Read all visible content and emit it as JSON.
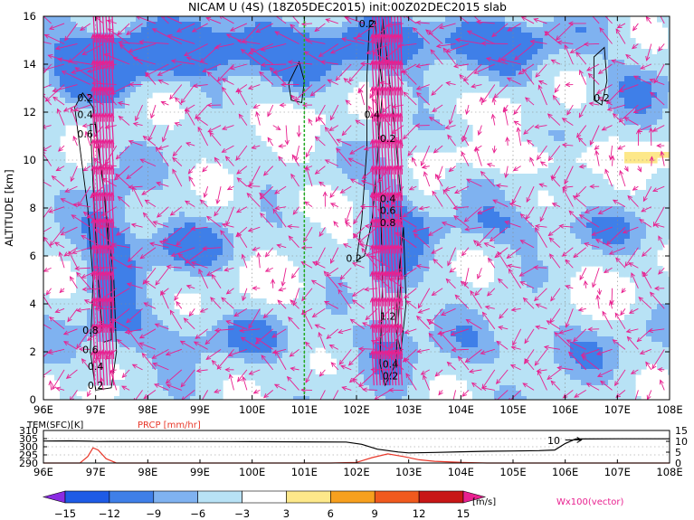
{
  "title": "NICAM  U  (4S)  (18Z05DEC2015)  init:00Z02DEC2015  slab",
  "colors": {
    "u_neg15": "#8a2be2",
    "u_neg12": "#1e5be6",
    "u_neg9": "#3f7fe8",
    "u_neg6": "#7fb2f0",
    "u_neg3": "#b8e2f5",
    "u_pos3": "#fde88a",
    "u_pos6": "#f7a01e",
    "u_pos9": "#f05a1e",
    "u_pos12": "#c81616",
    "u_pos15": "#e8208f",
    "vector": "#e8208f",
    "marker_line": "#22aa22",
    "precip_line": "#e8382a",
    "temp_line": "#000000"
  },
  "chart_data": [
    {
      "type": "heatmap",
      "title": "NICAM  U  (4S)  (18Z05DEC2015)  init:00Z02DEC2015  slab",
      "ylabel": "ALTITUDE  [km]",
      "xlim": [
        96,
        108
      ],
      "ylim": [
        0,
        16
      ],
      "x_ticks": [
        "96E",
        "97E",
        "98E",
        "99E",
        "100E",
        "101E",
        "102E",
        "103E",
        "104E",
        "105E",
        "106E",
        "107E",
        "108E"
      ],
      "y_ticks": [
        "0",
        "2",
        "4",
        "6",
        "8",
        "10",
        "12",
        "14",
        "16"
      ],
      "grid": true,
      "marker_longitude": 101,
      "contour_labels": [
        {
          "text": "0.2",
          "x": 96.8,
          "y": 12.6
        },
        {
          "text": "0.4",
          "x": 96.8,
          "y": 11.9
        },
        {
          "text": "0.6",
          "x": 96.8,
          "y": 11.1
        },
        {
          "text": "0.2",
          "x": 97.0,
          "y": 0.6
        },
        {
          "text": "0.4",
          "x": 97.0,
          "y": 1.4
        },
        {
          "text": "0.6",
          "x": 96.9,
          "y": 2.1
        },
        {
          "text": "0.8",
          "x": 96.9,
          "y": 2.9
        },
        {
          "text": "0.2",
          "x": 102.2,
          "y": 15.7
        },
        {
          "text": "0.4",
          "x": 102.3,
          "y": 11.9
        },
        {
          "text": "0.2",
          "x": 102.6,
          "y": 10.9
        },
        {
          "text": "0.4",
          "x": 102.6,
          "y": 8.4
        },
        {
          "text": "0.6",
          "x": 102.6,
          "y": 7.9
        },
        {
          "text": "0.8",
          "x": 102.6,
          "y": 7.4
        },
        {
          "text": "0.2",
          "x": 101.95,
          "y": 5.9
        },
        {
          "text": "1.2",
          "x": 102.6,
          "y": 3.5
        },
        {
          "text": "0.4",
          "x": 102.65,
          "y": 1.5
        },
        {
          "text": "0.2",
          "x": 102.65,
          "y": 1.0
        },
        {
          "text": "0.2",
          "x": 106.7,
          "y": 12.6
        }
      ]
    },
    {
      "type": "line",
      "xlim": [
        96,
        108
      ],
      "series_labels": [
        "TEM(SFC)[K]",
        "PRCP [mm/hr]"
      ],
      "left_axis": {
        "ticks": [
          "310",
          "305",
          "300",
          "295",
          "290"
        ],
        "ylim": [
          290,
          310
        ]
      },
      "right_axis": {
        "ticks": [
          "15",
          "10",
          "5",
          "0"
        ],
        "ylim": [
          0,
          15
        ]
      },
      "x_ticks": [
        "96E",
        "97E",
        "98E",
        "99E",
        "100E",
        "101E",
        "102E",
        "103E",
        "104E",
        "105E",
        "106E",
        "107E",
        "108E"
      ],
      "annotation": "10",
      "series": [
        {
          "name": "TEM(SFC)[K]",
          "x": [
            96.0,
            96.5,
            96.9,
            97.0,
            97.3,
            98.0,
            99.0,
            100.0,
            101.0,
            101.8,
            102.1,
            102.4,
            102.8,
            103.0,
            103.5,
            104.0,
            104.5,
            105.0,
            105.5,
            105.8,
            106.0,
            106.2,
            107.0,
            108.0
          ],
          "values": [
            303.5,
            303.6,
            303.4,
            303.2,
            303.3,
            303.3,
            303.2,
            303.1,
            303.0,
            302.9,
            301.5,
            298.5,
            296.8,
            296.2,
            296.5,
            296.9,
            297.2,
            297.4,
            297.6,
            298.0,
            302.0,
            304.8,
            304.9,
            304.9
          ]
        },
        {
          "name": "PRCP [mm/hr]",
          "x": [
            96.0,
            96.7,
            96.85,
            96.95,
            97.05,
            97.2,
            97.4,
            98.0,
            100.0,
            101.5,
            102.0,
            102.3,
            102.6,
            102.9,
            103.2,
            103.5,
            104.0,
            104.5,
            106.0,
            108.0
          ],
          "values": [
            0,
            0,
            3.0,
            7.0,
            6.0,
            2.0,
            0,
            0,
            0,
            0,
            0.3,
            2.5,
            4.2,
            3.0,
            1.5,
            0.8,
            0.3,
            0,
            0,
            0
          ]
        }
      ]
    }
  ],
  "colorbar": {
    "ticks": [
      "−15",
      "−12",
      "−9",
      "−6",
      "−3",
      "3",
      "6",
      "9",
      "12",
      "15"
    ],
    "unit": "[m/s]",
    "vector_label": "Wx100(vector)"
  }
}
